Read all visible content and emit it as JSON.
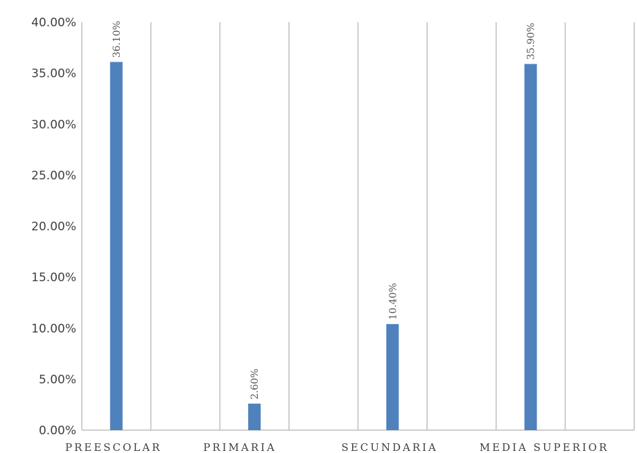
{
  "chart_data": {
    "type": "bar",
    "categories": [
      "PREESCOLAR",
      "PRIMARIA",
      "SECUNDARIA",
      "MEDIA SUPERIOR"
    ],
    "values": [
      36.1,
      2.6,
      10.4,
      35.9
    ],
    "data_labels": [
      "36.10%",
      "2.60%",
      "10.40%",
      "35.90%"
    ],
    "y_ticks": [
      "0.00%",
      "5.00%",
      "10.00%",
      "15.00%",
      "20.00%",
      "25.00%",
      "30.00%",
      "35.00%",
      "40.00%"
    ],
    "ylim": [
      0,
      40
    ],
    "title": "",
    "xlabel": "",
    "ylabel": "",
    "grid": "vertical",
    "legend": "none",
    "colors": {
      "bar": "#4f81bd",
      "grid": "#bfbfbf",
      "text": "#404040"
    }
  }
}
